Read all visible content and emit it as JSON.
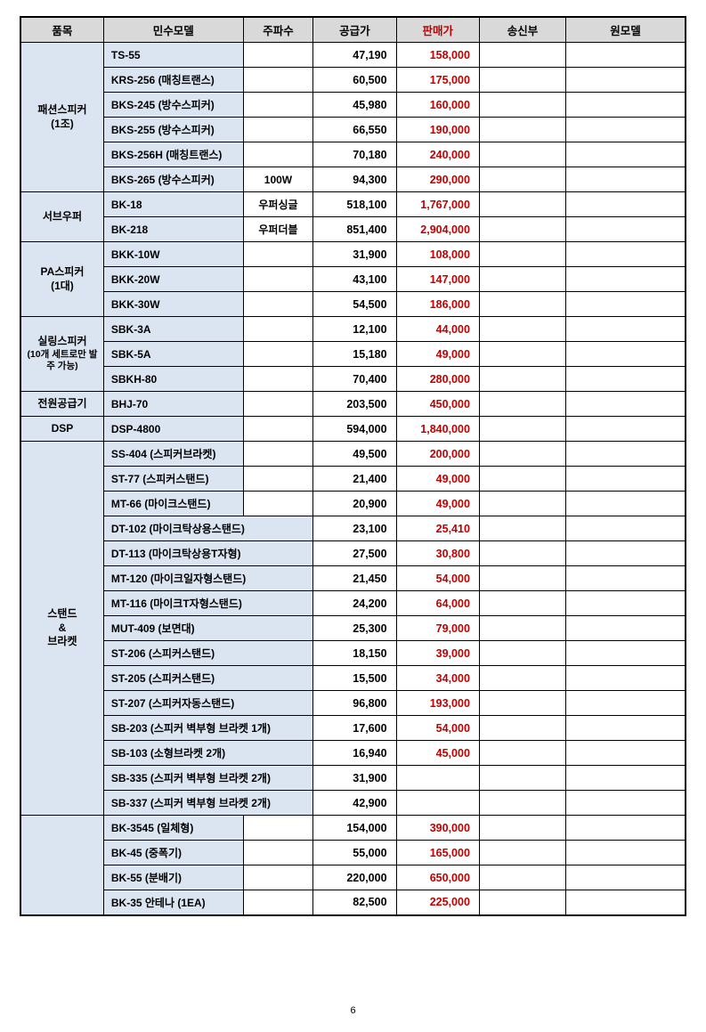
{
  "headers": {
    "c1": "품목",
    "c2": "민수모델",
    "c3": "주파수",
    "c4": "공급가",
    "c5": "판매가",
    "c6": "송신부",
    "c7": "원모델"
  },
  "colors": {
    "header_bg": "#d9d9d9",
    "block_bg": "#dbe5f1",
    "sale_color": "#c00000",
    "border": "#000000",
    "text": "#000000",
    "page_bg": "#ffffff"
  },
  "groups": [
    {
      "category_lines": [
        "패션스피커",
        "(1조)"
      ],
      "rows": [
        {
          "model": "TS-55",
          "freq": "",
          "supply": "47,190",
          "sale": "158,000",
          "model_cols": 1
        },
        {
          "model": "KRS-256 (매칭트랜스)",
          "freq": "",
          "supply": "60,500",
          "sale": "175,000",
          "model_cols": 1
        },
        {
          "model": "BKS-245 (방수스피커)",
          "freq": "",
          "supply": "45,980",
          "sale": "160,000",
          "model_cols": 1
        },
        {
          "model": "BKS-255 (방수스피커)",
          "freq": "",
          "supply": "66,550",
          "sale": "190,000",
          "model_cols": 1
        },
        {
          "model": "BKS-256H (매칭트랜스)",
          "freq": "",
          "supply": "70,180",
          "sale": "240,000",
          "model_cols": 1
        },
        {
          "model": "BKS-265 (방수스피커)",
          "freq": "100W",
          "supply": "94,300",
          "sale": "290,000",
          "model_cols": 1
        }
      ]
    },
    {
      "category_lines": [
        "서브우퍼"
      ],
      "rows": [
        {
          "model": "BK-18",
          "freq": "우퍼싱글",
          "supply": "518,100",
          "sale": "1,767,000",
          "model_cols": 1
        },
        {
          "model": "BK-218",
          "freq": "우퍼더블",
          "supply": "851,400",
          "sale": "2,904,000",
          "model_cols": 1
        }
      ]
    },
    {
      "category_lines": [
        "PA스피커",
        "(1대)"
      ],
      "rows": [
        {
          "model": "BKK-10W",
          "freq": "",
          "supply": "31,900",
          "sale": "108,000",
          "model_cols": 1
        },
        {
          "model": "BKK-20W",
          "freq": "",
          "supply": "43,100",
          "sale": "147,000",
          "model_cols": 1
        },
        {
          "model": "BKK-30W",
          "freq": "",
          "supply": "54,500",
          "sale": "186,000",
          "model_cols": 1
        }
      ]
    },
    {
      "category_lines": [
        "실링스피커"
      ],
      "category_sub": "(10개 세트로만 발주 가능)",
      "rows": [
        {
          "model": "SBK-3A",
          "freq": "",
          "supply": "12,100",
          "sale": "44,000",
          "model_cols": 1
        },
        {
          "model": "SBK-5A",
          "freq": "",
          "supply": "15,180",
          "sale": "49,000",
          "model_cols": 1
        },
        {
          "model": "SBKH-80",
          "freq": "",
          "supply": "70,400",
          "sale": "280,000",
          "model_cols": 1
        }
      ]
    },
    {
      "category_lines": [
        "전원공급기"
      ],
      "rows": [
        {
          "model": "BHJ-70",
          "freq": "",
          "supply": "203,500",
          "sale": "450,000",
          "model_cols": 1
        }
      ]
    },
    {
      "category_lines": [
        "DSP"
      ],
      "rows": [
        {
          "model": "DSP-4800",
          "freq": "",
          "supply": "594,000",
          "sale": "1,840,000",
          "model_cols": 1
        }
      ]
    },
    {
      "category_lines": [
        "스탠드",
        "&",
        "브라켓"
      ],
      "rows": [
        {
          "model": "SS-404 (스피커브라켓)",
          "freq": "",
          "supply": "49,500",
          "sale": "200,000",
          "model_cols": 1
        },
        {
          "model": "ST-77 (스피커스탠드)",
          "freq": "",
          "supply": "21,400",
          "sale": "49,000",
          "model_cols": 1
        },
        {
          "model": "MT-66 (마이크스탠드)",
          "freq": "",
          "supply": "20,900",
          "sale": "49,000",
          "model_cols": 1
        },
        {
          "model": "DT-102 (마이크탁상용스탠드)",
          "supply": "23,100",
          "sale": "25,410",
          "model_cols": 2
        },
        {
          "model": "DT-113 (마이크탁상용T자형)",
          "supply": "27,500",
          "sale": "30,800",
          "model_cols": 2
        },
        {
          "model": "MT-120 (마이크일자형스탠드)",
          "supply": "21,450",
          "sale": "54,000",
          "model_cols": 2
        },
        {
          "model": "MT-116 (마이크T자형스탠드)",
          "supply": "24,200",
          "sale": "64,000",
          "model_cols": 2
        },
        {
          "model": "MUT-409 (보면대)",
          "supply": "25,300",
          "sale": "79,000",
          "model_cols": 2
        },
        {
          "model": "ST-206 (스피커스탠드)",
          "supply": "18,150",
          "sale": "39,000",
          "model_cols": 2
        },
        {
          "model": "ST-205 (스피커스탠드)",
          "supply": "15,500",
          "sale": "34,000",
          "model_cols": 2
        },
        {
          "model": "ST-207 (스피커자동스탠드)",
          "supply": "96,800",
          "sale": "193,000",
          "model_cols": 2
        },
        {
          "model": "SB-203 (스피커 벽부형 브라켓 1개)",
          "supply": "17,600",
          "sale": "54,000",
          "model_cols": 2
        },
        {
          "model": "SB-103 (소형브라켓 2개)",
          "supply": "16,940",
          "sale": "45,000",
          "model_cols": 2
        },
        {
          "model": "SB-335 (스피커 벽부형 브라켓 2개)",
          "supply": "31,900",
          "sale": "",
          "model_cols": 2
        },
        {
          "model": "SB-337 (스피커 벽부형 브라켓 2개)",
          "supply": "42,900",
          "sale": "",
          "model_cols": 2
        }
      ]
    },
    {
      "category_lines": [
        ""
      ],
      "rows": [
        {
          "model": "BK-3545 (일체형)",
          "freq": "",
          "supply": "154,000",
          "sale": "390,000",
          "model_cols": 1
        },
        {
          "model": "BK-45 (중폭기)",
          "freq": "",
          "supply": "55,000",
          "sale": "165,000",
          "model_cols": 1
        },
        {
          "model": "BK-55 (분배기)",
          "freq": "",
          "supply": "220,000",
          "sale": "650,000",
          "model_cols": 1
        },
        {
          "model": "BK-35 안테나 (1EA)",
          "freq": "",
          "supply": "82,500",
          "sale": "225,000",
          "model_cols": 1
        }
      ]
    }
  ],
  "page_number": "6"
}
